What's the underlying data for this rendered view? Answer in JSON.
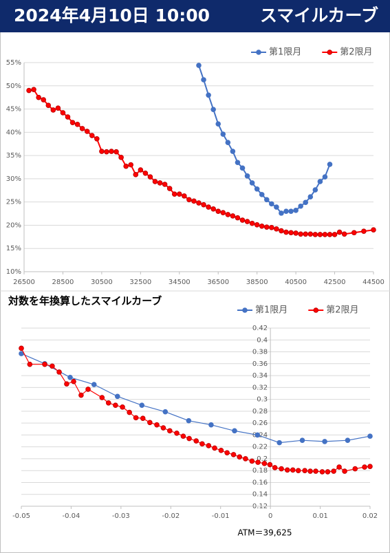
{
  "header": {
    "date": "2024年4月10日 10:00",
    "title": "スマイルカーブ"
  },
  "chart_data": [
    {
      "type": "line",
      "legend": "top-right",
      "grid": true,
      "xlim": [
        26500,
        44500
      ],
      "xticks": [
        26500,
        28500,
        30500,
        32500,
        34500,
        36500,
        38500,
        40500,
        42500,
        44500
      ],
      "ylim": [
        10,
        55
      ],
      "yticks": [
        {
          "value": 10,
          "label": "10%"
        },
        {
          "value": 15,
          "label": "15%"
        },
        {
          "value": 20,
          "label": "20%"
        },
        {
          "value": 25,
          "label": "25%"
        },
        {
          "value": 30,
          "label": "30%"
        },
        {
          "value": 35,
          "label": "35%"
        },
        {
          "value": 40,
          "label": "40%"
        },
        {
          "value": 45,
          "label": "45%"
        },
        {
          "value": 50,
          "label": "50%"
        },
        {
          "value": 55,
          "label": "55%"
        }
      ],
      "series": [
        {
          "name": "第1限月",
          "color": "#4472c4",
          "x": [
            35500,
            35750,
            36000,
            36250,
            36500,
            36750,
            37000,
            37250,
            37500,
            37750,
            38000,
            38250,
            38500,
            38750,
            39000,
            39250,
            39500,
            39750,
            40000,
            40250,
            40500,
            40750,
            41000,
            41250,
            41500,
            41750,
            42000,
            42250
          ],
          "values": [
            54.4,
            51.3,
            48.0,
            44.9,
            41.8,
            39.6,
            37.8,
            35.9,
            33.5,
            32.3,
            30.6,
            29.1,
            27.8,
            26.6,
            25.5,
            24.6,
            23.9,
            22.6,
            23.0,
            23.0,
            23.2,
            24.1,
            24.9,
            26.1,
            27.6,
            29.4,
            30.4,
            33.1
          ]
        },
        {
          "name": "第2限月",
          "color": "#ff0000",
          "x": [
            26750,
            27000,
            27250,
            27500,
            27750,
            28000,
            28250,
            28500,
            28750,
            29000,
            29250,
            29500,
            29750,
            30000,
            30250,
            30500,
            30750,
            31000,
            31250,
            31500,
            31750,
            32000,
            32250,
            32500,
            32750,
            33000,
            33250,
            33500,
            33750,
            34000,
            34250,
            34500,
            34750,
            35000,
            35250,
            35500,
            35750,
            36000,
            36250,
            36500,
            36750,
            37000,
            37250,
            37500,
            37750,
            38000,
            38250,
            38500,
            38750,
            39000,
            39250,
            39500,
            39750,
            40000,
            40250,
            40500,
            40750,
            41000,
            41250,
            41500,
            41750,
            42000,
            42250,
            42500,
            42750,
            43000,
            43500,
            44000,
            44500
          ],
          "values": [
            49.0,
            49.2,
            47.5,
            47.0,
            45.8,
            44.8,
            45.2,
            44.2,
            43.3,
            42.1,
            41.7,
            40.8,
            40.2,
            39.3,
            38.6,
            35.9,
            35.8,
            35.9,
            35.8,
            34.6,
            32.7,
            33.0,
            30.9,
            31.9,
            31.2,
            30.4,
            29.4,
            29.1,
            28.8,
            27.9,
            26.7,
            26.7,
            26.3,
            25.5,
            25.2,
            24.8,
            24.4,
            23.9,
            23.5,
            23.0,
            22.7,
            22.3,
            22.0,
            21.6,
            21.1,
            20.8,
            20.4,
            20.1,
            19.8,
            19.6,
            19.5,
            19.2,
            18.8,
            18.5,
            18.4,
            18.3,
            18.1,
            18.1,
            18.1,
            18.0,
            18.0,
            18.0,
            18.0,
            18.0,
            18.5,
            18.1,
            18.4,
            18.7,
            19.0
          ]
        }
      ]
    },
    {
      "type": "line",
      "title": "対数を年換算したスマイルカーブ",
      "legend": "top-right",
      "grid": true,
      "annotation": "ATM＝39,625",
      "xlim": [
        -0.05,
        0.02
      ],
      "xticks": [
        -0.05,
        -0.04,
        -0.03,
        -0.02,
        -0.01,
        0,
        0.01,
        0.02
      ],
      "ylim": [
        0.12,
        0.42
      ],
      "yticks": [
        0.12,
        0.14,
        0.16,
        0.18,
        0.2,
        0.22,
        0.24,
        0.26,
        0.28,
        0.3,
        0.32,
        0.34,
        0.36,
        0.38,
        0.4,
        0.42
      ],
      "series": [
        {
          "name": "第1限月",
          "color": "#4472c4",
          "x": [
            -0.05,
            -0.0453,
            -0.0402,
            -0.0354,
            -0.0307,
            -0.0258,
            -0.0211,
            -0.0164,
            -0.0119,
            -0.0072,
            -0.0026,
            0.0018,
            0.0064,
            0.0109,
            0.0155,
            0.02
          ],
          "values": [
            0.377,
            0.36,
            0.337,
            0.325,
            0.305,
            0.29,
            0.279,
            0.264,
            0.257,
            0.247,
            0.24,
            0.227,
            0.231,
            0.229,
            0.231,
            0.238
          ]
        },
        {
          "name": "第2限月",
          "color": "#ff0000",
          "x": [
            -0.05,
            -0.0483,
            -0.0453,
            -0.0438,
            -0.0424,
            -0.0409,
            -0.0395,
            -0.038,
            -0.0366,
            -0.0338,
            -0.0325,
            -0.0311,
            -0.0297,
            -0.0283,
            -0.027,
            -0.0256,
            -0.0242,
            -0.0228,
            -0.0215,
            -0.0202,
            -0.0188,
            -0.0175,
            -0.0163,
            -0.0149,
            -0.0137,
            -0.0124,
            -0.0112,
            -0.0099,
            -0.0087,
            -0.0074,
            -0.0062,
            -0.005,
            -0.0037,
            -0.0025,
            -0.0012,
            -0.0001,
            0.0009,
            0.0022,
            0.0034,
            0.0045,
            0.0056,
            0.0069,
            0.008,
            0.0091,
            0.0104,
            0.0115,
            0.0127,
            0.0138,
            0.0149,
            0.017,
            0.0189,
            0.02
          ],
          "values": [
            0.386,
            0.359,
            0.359,
            0.356,
            0.346,
            0.326,
            0.33,
            0.307,
            0.317,
            0.303,
            0.294,
            0.29,
            0.287,
            0.278,
            0.269,
            0.268,
            0.261,
            0.257,
            0.252,
            0.247,
            0.243,
            0.238,
            0.234,
            0.23,
            0.225,
            0.222,
            0.218,
            0.214,
            0.21,
            0.207,
            0.203,
            0.2,
            0.196,
            0.194,
            0.192,
            0.19,
            0.185,
            0.183,
            0.181,
            0.181,
            0.18,
            0.18,
            0.179,
            0.179,
            0.178,
            0.178,
            0.179,
            0.186,
            0.179,
            0.183,
            0.186,
            0.187
          ]
        }
      ]
    }
  ]
}
